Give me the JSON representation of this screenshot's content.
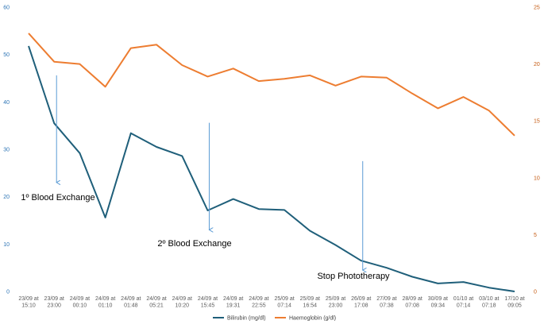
{
  "chart_data": {
    "type": "line",
    "categories": [
      [
        "23/09 at",
        "15:10"
      ],
      [
        "23/09 at",
        "23:00"
      ],
      [
        "24/09 at",
        "00:10"
      ],
      [
        "24/09 at",
        "01:10"
      ],
      [
        "24/09 at",
        "01:48"
      ],
      [
        "24/09 at",
        "05:21"
      ],
      [
        "24/09 at",
        "10:20"
      ],
      [
        "24/09 at",
        "15:45"
      ],
      [
        "24/09 at",
        "19:31"
      ],
      [
        "24/09 at",
        "22:55"
      ],
      [
        "25/09 at",
        "07:14"
      ],
      [
        "25/09 at",
        "16:54"
      ],
      [
        "25/09 at",
        "23:00"
      ],
      [
        "26/09 at",
        "17:08"
      ],
      [
        "27/09 at",
        "07:38"
      ],
      [
        "28/09 at",
        "07:08"
      ],
      [
        "30/09 at",
        "09:34"
      ],
      [
        "01/10 at",
        "07:14"
      ],
      [
        "03/10 at",
        "07:18"
      ],
      [
        "17/10 at",
        "09:05"
      ]
    ],
    "series": [
      {
        "name": "Bilirubin (mg/dl)",
        "axis": "left",
        "color": "#1f5f7a",
        "values": [
          51.8,
          35.5,
          29.2,
          15.6,
          33.4,
          30.5,
          28.6,
          17.1,
          19.5,
          17.4,
          17.2,
          12.8,
          9.8,
          6.5,
          5.0,
          3.1,
          1.7,
          2.0,
          0.8,
          0.0
        ]
      },
      {
        "name": "Haemoglobin (g/dl)",
        "axis": "right",
        "color": "#ed7d31",
        "values": [
          22.7,
          20.2,
          20.0,
          18.0,
          21.4,
          21.7,
          19.9,
          18.9,
          19.6,
          18.5,
          18.7,
          19.0,
          18.1,
          18.9,
          18.8,
          17.4,
          16.1,
          17.1,
          15.9,
          13.7
        ]
      }
    ],
    "y_left": {
      "min": 0,
      "max": 60,
      "ticks": [
        "0",
        "10",
        "20",
        "30",
        "40",
        "50",
        "60"
      ],
      "tick_values": [
        0,
        10,
        20,
        30,
        40,
        50,
        60
      ]
    },
    "y_right": {
      "min": 0,
      "max": 25,
      "ticks": [
        "0",
        "5",
        "10",
        "15",
        "20",
        "25"
      ],
      "tick_values": [
        0,
        5,
        10,
        15,
        20,
        25
      ]
    },
    "annotations": [
      {
        "label": "1º Blood Exchange",
        "category_index": 1,
        "arrow_from": 45.6,
        "arrow_to": 23.0
      },
      {
        "label": "2º Blood Exchange",
        "category_index": 7,
        "arrow_from": 35.6,
        "arrow_to": 13.0
      },
      {
        "label": "Stop Phototherapy",
        "category_index": 13,
        "arrow_from": 27.5,
        "arrow_to": 4.5
      }
    ],
    "annotation_color": "#5b9bd5",
    "legend": {
      "position": "bottom-center"
    },
    "grid": false
  }
}
